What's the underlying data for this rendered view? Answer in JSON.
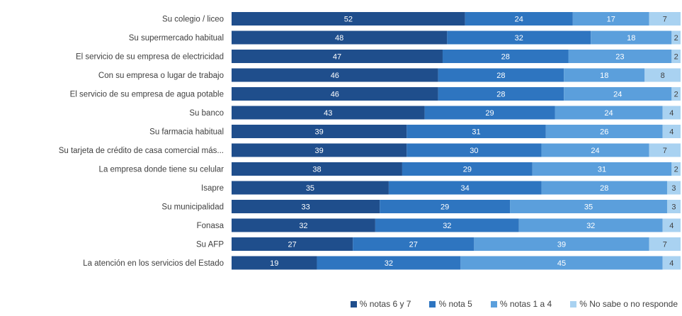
{
  "chart_data": {
    "type": "bar",
    "orientation": "horizontal",
    "stacked": "percent",
    "categories": [
      "Su colegio / liceo",
      "Su supermercado habitual",
      "El servicio de su empresa de electricidad",
      "Con su empresa o lugar de trabajo",
      "El servicio de su empresa de agua potable",
      "Su banco",
      "Su farmacia habitual",
      "Su tarjeta de crédito de casa comercial más...",
      "La empresa donde tiene su celular",
      "Isapre",
      "Su municipalidad",
      "Fonasa",
      "Su AFP",
      "La atención en los servicios del Estado"
    ],
    "series": [
      {
        "name": "% notas 6 y 7",
        "color": "#1f4e8c",
        "values": [
          52,
          48,
          47,
          46,
          46,
          43,
          39,
          39,
          38,
          35,
          33,
          32,
          27,
          19
        ]
      },
      {
        "name": "% nota 5",
        "color": "#2e75c0",
        "values": [
          24,
          32,
          28,
          28,
          28,
          29,
          31,
          30,
          29,
          34,
          29,
          32,
          27,
          32
        ]
      },
      {
        "name": "% notas 1 a 4",
        "color": "#5b9fdc",
        "values": [
          17,
          18,
          23,
          18,
          24,
          24,
          26,
          24,
          31,
          28,
          35,
          32,
          39,
          45
        ]
      },
      {
        "name": "% No sabe o no responde",
        "color": "#a9d2f1",
        "values": [
          7,
          2,
          2,
          8,
          2,
          4,
          4,
          7,
          2,
          3,
          3,
          4,
          7,
          4
        ]
      }
    ],
    "xlim": [
      0,
      100
    ],
    "grid": false,
    "legend": "bottom"
  }
}
